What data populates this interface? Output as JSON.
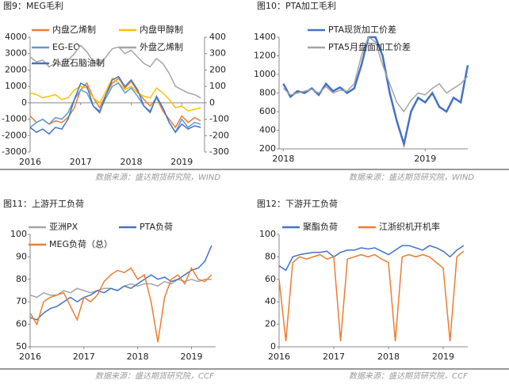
{
  "chart_data": [
    {
      "type": "line",
      "title": "图9：MEG毛利",
      "source": "数据来源：盛达期货研究院，WIND",
      "x": [
        2016,
        2016.125,
        2016.25,
        2016.375,
        2016.5,
        2016.625,
        2016.75,
        2016.875,
        2017,
        2017.125,
        2017.25,
        2017.375,
        2017.5,
        2017.625,
        2017.75,
        2017.875,
        2018,
        2018.125,
        2018.25,
        2018.375,
        2018.5,
        2018.625,
        2018.75,
        2018.875,
        2019,
        2019.125,
        2019.25,
        2019.375
      ],
      "xlim": [
        2016,
        2019.45
      ],
      "xticks": [
        2016,
        2017,
        2018,
        2019
      ],
      "ylim": [
        -3000,
        4000
      ],
      "yticks": [
        -3000,
        -2000,
        -1000,
        0,
        1000,
        2000,
        3000,
        4000
      ],
      "y2lim": [
        -300,
        400
      ],
      "y2ticks": [
        -300,
        -200,
        -100,
        0,
        100,
        200,
        300,
        400
      ],
      "series": [
        {
          "name": "内盘乙烯制",
          "color": "#ed7d31",
          "values": [
            -800,
            -1200,
            -1000,
            -1300,
            -1100,
            -1200,
            -900,
            -300,
            800,
            1200,
            300,
            -300,
            500,
            1200,
            1500,
            900,
            1300,
            700,
            200,
            -200,
            300,
            -500,
            -1000,
            -1500,
            -800,
            -1200,
            -900,
            -1100
          ]
        },
        {
          "name": "内盘甲醇制",
          "color": "#ffc000",
          "values": [
            600,
            500,
            300,
            400,
            500,
            200,
            300,
            800,
            1000,
            900,
            300,
            0,
            700,
            1500,
            1200,
            800,
            1000,
            600,
            400,
            300,
            900,
            600,
            200,
            -300,
            -200,
            -500,
            -400,
            -300
          ]
        },
        {
          "name": "EG-EO",
          "color": "#5b9bd5",
          "axis": "y2",
          "values": [
            -150,
            -120,
            -100,
            -130,
            -90,
            -100,
            -60,
            20,
            80,
            60,
            -20,
            -50,
            30,
            100,
            120,
            60,
            90,
            40,
            -20,
            -50,
            30,
            -30,
            -120,
            -180,
            -100,
            -150,
            -120,
            -130
          ]
        },
        {
          "name": "外盘乙烯制",
          "color": "#a5a5a5",
          "values": [
            2800,
            2500,
            2600,
            2200,
            2400,
            2300,
            2600,
            3000,
            3500,
            3100,
            2500,
            2300,
            2800,
            3300,
            3400,
            3000,
            3200,
            2800,
            2400,
            2200,
            2700,
            2400,
            1800,
            1000,
            800,
            600,
            500,
            300
          ]
        },
        {
          "name": "外盘石脑油制",
          "color": "#4472c4",
          "values": [
            -1500,
            -1800,
            -1600,
            -1900,
            -1500,
            -1600,
            -1000,
            200,
            1200,
            1000,
            -200,
            -600,
            500,
            1400,
            1600,
            1000,
            1400,
            800,
            -200,
            -600,
            400,
            -300,
            -1200,
            -1800,
            -1300,
            -1600,
            -1400,
            -1500
          ]
        }
      ]
    },
    {
      "type": "line",
      "title": "图10：PTA加工毛利",
      "source": "数据来源：盛达期货研究院，WIND",
      "x": [
        2018,
        2018.05,
        2018.1,
        2018.15,
        2018.2,
        2018.25,
        2018.3,
        2018.35,
        2018.4,
        2018.45,
        2018.5,
        2018.55,
        2018.6,
        2018.65,
        2018.7,
        2018.75,
        2018.8,
        2018.85,
        2018.9,
        2018.95,
        2019,
        2019.05,
        2019.1,
        2019.15,
        2019.2,
        2019.25,
        2019.3
      ],
      "xlim": [
        2017.97,
        2019.3
      ],
      "xticks": [
        2018,
        2019
      ],
      "ylim": [
        200,
        1400
      ],
      "yticks": [
        200,
        400,
        600,
        800,
        1000,
        1200,
        1400
      ],
      "series": [
        {
          "name": "PTA现货加工价差",
          "color": "#4472c4",
          "values": [
            900,
            760,
            820,
            800,
            850,
            780,
            900,
            820,
            860,
            800,
            850,
            1100,
            1400,
            1400,
            1200,
            800,
            500,
            250,
            600,
            750,
            700,
            800,
            650,
            600,
            750,
            700,
            1100
          ]
        },
        {
          "name": "PTA5月盘面加工价差",
          "color": "#a5a5a5",
          "values": [
            850,
            780,
            800,
            820,
            840,
            800,
            870,
            800,
            830,
            820,
            900,
            1200,
            1400,
            1350,
            1100,
            900,
            700,
            600,
            720,
            800,
            780,
            850,
            900,
            800,
            850,
            900,
            980
          ]
        }
      ]
    },
    {
      "type": "line",
      "title": "图11：上游开工负荷",
      "source": "数据来源：盛达期货研究院，CCF",
      "x": [
        2016,
        2016.125,
        2016.25,
        2016.375,
        2016.5,
        2016.625,
        2016.75,
        2016.875,
        2017,
        2017.125,
        2017.25,
        2017.375,
        2017.5,
        2017.625,
        2017.75,
        2017.875,
        2018,
        2018.125,
        2018.25,
        2018.375,
        2018.5,
        2018.625,
        2018.75,
        2018.875,
        2019,
        2019.125,
        2019.25,
        2019.375
      ],
      "xlim": [
        2016,
        2019.45
      ],
      "xticks": [
        2016,
        2017,
        2018,
        2019
      ],
      "ylim": [
        50,
        100
      ],
      "yticks": [
        50,
        60,
        70,
        80,
        90,
        100
      ],
      "series": [
        {
          "name": "亚洲PX",
          "color": "#a5a5a5",
          "values": [
            73,
            72,
            74,
            73,
            73,
            75,
            74,
            76,
            75,
            74,
            75,
            76,
            76,
            75,
            77,
            78,
            77,
            78,
            78,
            77,
            79,
            78,
            80,
            79,
            80,
            79,
            80,
            80
          ]
        },
        {
          "name": "PTA负荷",
          "color": "#4472c4",
          "values": [
            63,
            62,
            65,
            67,
            68,
            70,
            72,
            70,
            72,
            73,
            75,
            74,
            76,
            75,
            77,
            76,
            78,
            80,
            82,
            80,
            81,
            79,
            80,
            82,
            84,
            85,
            88,
            95
          ]
        },
        {
          "name": "MEG负荷（总）",
          "color": "#ed7d31",
          "values": [
            65,
            60,
            70,
            72,
            73,
            74,
            68,
            62,
            72,
            70,
            73,
            79,
            82,
            84,
            83,
            85,
            80,
            82,
            70,
            52,
            72,
            80,
            82,
            78,
            85,
            80,
            79,
            82
          ]
        }
      ]
    },
    {
      "type": "line",
      "title": "图12：下游开工负荷",
      "source": "数据来源：盛达期货研究院，CCF",
      "x": [
        2016,
        2016.125,
        2016.25,
        2016.375,
        2016.5,
        2016.625,
        2016.75,
        2016.875,
        2017,
        2017.125,
        2017.25,
        2017.375,
        2017.5,
        2017.625,
        2017.75,
        2017.875,
        2018,
        2018.125,
        2018.25,
        2018.375,
        2018.5,
        2018.625,
        2018.75,
        2018.875,
        2019,
        2019.125,
        2019.25,
        2019.375
      ],
      "xlim": [
        2016,
        2019.45
      ],
      "xticks": [
        2016,
        2017,
        2018,
        2019
      ],
      "ylim": [
        0,
        100
      ],
      "yticks": [
        0,
        20,
        40,
        60,
        80,
        100
      ],
      "series": [
        {
          "name": "聚酯负荷",
          "color": "#4472c4",
          "values": [
            72,
            68,
            80,
            82,
            83,
            84,
            84,
            85,
            80,
            84,
            86,
            86,
            88,
            87,
            88,
            85,
            82,
            86,
            90,
            90,
            88,
            86,
            90,
            88,
            85,
            80,
            86,
            90
          ]
        },
        {
          "name": "江浙织机开机率",
          "color": "#ed7d31",
          "values": [
            60,
            5,
            75,
            80,
            78,
            80,
            82,
            78,
            80,
            5,
            78,
            80,
            82,
            80,
            82,
            78,
            75,
            5,
            80,
            82,
            80,
            82,
            80,
            75,
            70,
            5,
            80,
            85
          ]
        }
      ]
    }
  ]
}
